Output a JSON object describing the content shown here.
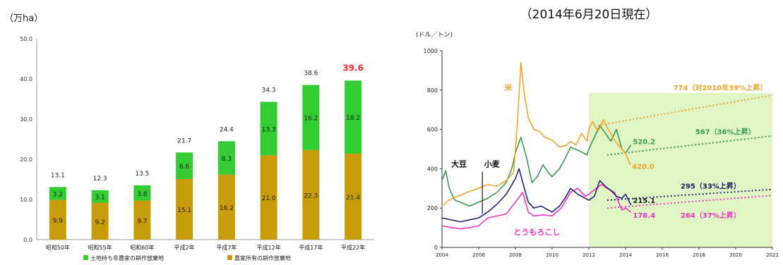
{
  "colors": {
    "green": "#33cc33",
    "gold": "#c89b08",
    "red_label": "#ff2a2a",
    "rice": "#f5a323",
    "soy": "#3a9a55",
    "wheat": "#232375",
    "corn": "#f032c8",
    "forecast_bg": "#dff5c3"
  },
  "chart_data": [
    {
      "type": "bar",
      "stacked": true,
      "title": "",
      "unit_label": "（万ha）",
      "xlabel": "",
      "ylabel": "",
      "ylim": [
        0,
        50
      ],
      "y_ticks": [
        "0.0",
        "10.0",
        "20.0",
        "30.0",
        "40.0",
        "50.0"
      ],
      "grid": false,
      "legend_position": "bottom",
      "categories": [
        "昭和50年",
        "昭和55年",
        "昭和60年",
        "平成2年",
        "平成7年",
        "平成12年",
        "平成17年",
        "平成22年"
      ],
      "series": [
        {
          "name": "農家所有の耕作放棄地",
          "values": [
            9.9,
            9.2,
            9.7,
            15.1,
            16.2,
            21.0,
            22.3,
            21.4
          ],
          "labels": [
            "9.9",
            "9.2",
            "9.7",
            "15.1",
            "16.2",
            "21.0",
            "22.3",
            "21.4"
          ]
        },
        {
          "name": "土地持ち非農家の耕作放棄地",
          "values": [
            3.2,
            3.1,
            3.8,
            6.6,
            8.3,
            13.3,
            16.2,
            18.2
          ],
          "labels": [
            "3.2",
            "3.1",
            "3.8",
            "6.6",
            "8.3",
            "13.3",
            "16.2",
            "18.2"
          ]
        }
      ],
      "totals": [
        13.1,
        12.3,
        13.5,
        21.7,
        24.4,
        34.3,
        38.6,
        39.6
      ],
      "total_labels": [
        "13.1",
        "12.3",
        "13.5",
        "21.7",
        "24.4",
        "34.3",
        "38.6",
        "39.6"
      ],
      "highlighted_total_index": 7
    },
    {
      "type": "line",
      "title": "（2014年6月20日現在）",
      "unit_label": "(ドル／トン)",
      "xlabel": "",
      "ylabel": "",
      "xlim": [
        2004,
        2022
      ],
      "ylim": [
        0,
        1000
      ],
      "x_ticks": [
        "2004",
        "2006",
        "2008",
        "2010",
        "2012",
        "2014",
        "2016",
        "2018",
        "2020",
        "2022"
      ],
      "y_ticks": [
        "0",
        "200",
        "400",
        "600",
        "800",
        "1000"
      ],
      "grid": false,
      "legend_position": "none",
      "highlight_region": [
        2012,
        2022
      ],
      "series": [
        {
          "name": "米",
          "points": [
            [
              2004,
              210
            ],
            [
              2004.3,
              235
            ],
            [
              2004.7,
              255
            ],
            [
              2005,
              265
            ],
            [
              2005.5,
              285
            ],
            [
              2006,
              300
            ],
            [
              2006.5,
              320
            ],
            [
              2007,
              310
            ],
            [
              2007.5,
              340
            ],
            [
              2007.9,
              380
            ],
            [
              2008.1,
              620
            ],
            [
              2008.3,
              940
            ],
            [
              2008.5,
              770
            ],
            [
              2008.7,
              660
            ],
            [
              2009,
              600
            ],
            [
              2009.3,
              590
            ],
            [
              2009.6,
              560
            ],
            [
              2010,
              545
            ],
            [
              2010.4,
              510
            ],
            [
              2010.8,
              520
            ],
            [
              2011,
              540
            ],
            [
              2011.3,
              520
            ],
            [
              2011.6,
              580
            ],
            [
              2011.9,
              540
            ],
            [
              2012,
              600
            ],
            [
              2012.2,
              640
            ],
            [
              2012.5,
              590
            ],
            [
              2012.8,
              650
            ],
            [
              2013,
              610
            ],
            [
              2013.3,
              560
            ],
            [
              2013.6,
              520
            ],
            [
              2014,
              480
            ],
            [
              2014.25,
              420
            ]
          ],
          "end_label": "420.0",
          "projection": [
            [
              2012.5,
              620
            ],
            [
              2022,
              774
            ]
          ],
          "projection_label": "774（対2010年39%上昇）"
        },
        {
          "name": "大豆",
          "points": [
            [
              2004,
              340
            ],
            [
              2004.2,
              390
            ],
            [
              2004.4,
              300
            ],
            [
              2004.7,
              240
            ],
            [
              2005,
              230
            ],
            [
              2005.5,
              210
            ],
            [
              2006,
              230
            ],
            [
              2006.5,
              250
            ],
            [
              2007,
              280
            ],
            [
              2007.5,
              330
            ],
            [
              2007.8,
              400
            ],
            [
              2008,
              480
            ],
            [
              2008.3,
              560
            ],
            [
              2008.6,
              460
            ],
            [
              2008.9,
              330
            ],
            [
              2009.2,
              360
            ],
            [
              2009.5,
              420
            ],
            [
              2009.8,
              380
            ],
            [
              2010,
              360
            ],
            [
              2010.4,
              400
            ],
            [
              2010.7,
              450
            ],
            [
              2011,
              510
            ],
            [
              2011.5,
              490
            ],
            [
              2011.9,
              470
            ],
            [
              2012,
              500
            ],
            [
              2012.3,
              560
            ],
            [
              2012.6,
              620
            ],
            [
              2012.9,
              580
            ],
            [
              2013.2,
              540
            ],
            [
              2013.5,
              600
            ],
            [
              2013.8,
              500
            ],
            [
              2014,
              480
            ],
            [
              2014.3,
              520.2
            ]
          ],
          "end_label": "520.2",
          "projection": [
            [
              2013,
              470
            ],
            [
              2022,
              567
            ]
          ],
          "projection_label": "567（36%上昇）"
        },
        {
          "name": "小麦",
          "points": [
            [
              2004,
              150
            ],
            [
              2004.5,
              140
            ],
            [
              2005,
              130
            ],
            [
              2005.5,
              140
            ],
            [
              2006,
              150
            ],
            [
              2006.5,
              180
            ],
            [
              2007,
              220
            ],
            [
              2007.5,
              270
            ],
            [
              2008,
              350
            ],
            [
              2008.2,
              400
            ],
            [
              2008.4,
              330
            ],
            [
              2008.7,
              230
            ],
            [
              2009,
              200
            ],
            [
              2009.4,
              210
            ],
            [
              2009.8,
              190
            ],
            [
              2010,
              180
            ],
            [
              2010.4,
              210
            ],
            [
              2010.7,
              250
            ],
            [
              2011,
              300
            ],
            [
              2011.4,
              270
            ],
            [
              2011.8,
              250
            ],
            [
              2012,
              240
            ],
            [
              2012.3,
              260
            ],
            [
              2012.6,
              340
            ],
            [
              2012.9,
              310
            ],
            [
              2013.2,
              290
            ],
            [
              2013.5,
              260
            ],
            [
              2013.8,
              250
            ],
            [
              2014,
              270
            ],
            [
              2014.3,
              215.1
            ]
          ],
          "end_label": "215.1",
          "projection": [
            [
              2013,
              240
            ],
            [
              2022,
              295
            ]
          ],
          "projection_label": "295（33%上昇）"
        },
        {
          "name": "とうもろこし",
          "points": [
            [
              2004,
              110
            ],
            [
              2004.5,
              100
            ],
            [
              2005,
              95
            ],
            [
              2005.5,
              100
            ],
            [
              2006,
              110
            ],
            [
              2006.5,
              150
            ],
            [
              2007,
              160
            ],
            [
              2007.5,
              170
            ],
            [
              2008,
              230
            ],
            [
              2008.4,
              280
            ],
            [
              2008.7,
              180
            ],
            [
              2009,
              160
            ],
            [
              2009.5,
              165
            ],
            [
              2010,
              160
            ],
            [
              2010.5,
              200
            ],
            [
              2011,
              280
            ],
            [
              2011.4,
              300
            ],
            [
              2011.8,
              260
            ],
            [
              2012,
              270
            ],
            [
              2012.4,
              300
            ],
            [
              2012.7,
              320
            ],
            [
              2013,
              300
            ],
            [
              2013.4,
              280
            ],
            [
              2013.8,
              190
            ],
            [
              2014,
              200
            ],
            [
              2014.3,
              178.4
            ]
          ],
          "end_label": "178.4",
          "projection": [
            [
              2013,
              200
            ],
            [
              2022,
              264
            ]
          ],
          "projection_label": "264（37%上昇）"
        }
      ]
    }
  ]
}
